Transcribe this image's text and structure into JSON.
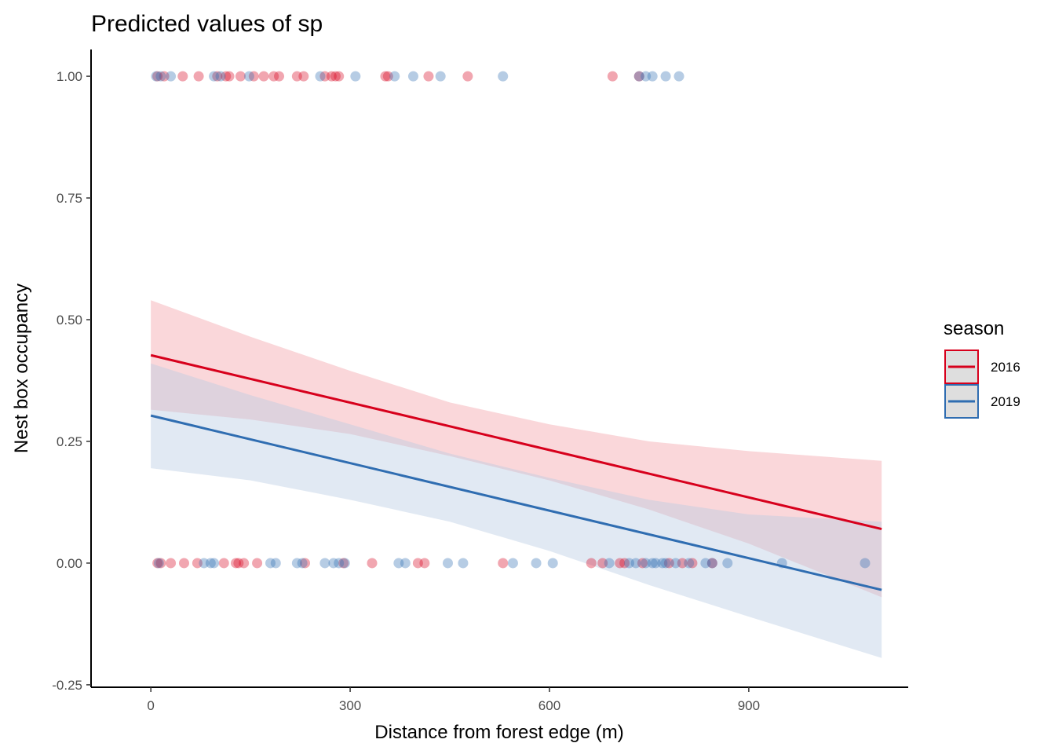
{
  "chart_data": {
    "type": "line",
    "title": "Predicted values of sp",
    "xlabel": "Distance from forest edge (m)",
    "ylabel": "Nest box occupancy",
    "xlim": [
      -90,
      1140
    ],
    "ylim": [
      -0.255,
      1.055
    ],
    "x_ticks": [
      0,
      300,
      600,
      900
    ],
    "x_tick_labels": [
      "0",
      "300",
      "600",
      "900"
    ],
    "y_ticks": [
      -0.25,
      0,
      0.25,
      0.5,
      0.75,
      1
    ],
    "y_tick_labels": [
      "-0.25",
      "0.00",
      "0.25",
      "0.50",
      "0.75",
      "1.00"
    ],
    "grid": false,
    "legend": {
      "title": "season",
      "position": "right"
    },
    "series": [
      {
        "name": "2016",
        "color": "#d7001c",
        "band_color": "#f3a6ad",
        "line": {
          "x": [
            0,
            1100
          ],
          "y": [
            0.427,
            0.07
          ]
        },
        "ci_lower": {
          "x": [
            0,
            150,
            300,
            450,
            600,
            750,
            900,
            1100
          ],
          "y": [
            0.315,
            0.295,
            0.265,
            0.22,
            0.17,
            0.11,
            0.04,
            -0.07
          ]
        },
        "ci_upper": {
          "x": [
            0,
            150,
            300,
            450,
            600,
            750,
            900,
            1100
          ],
          "y": [
            0.54,
            0.465,
            0.395,
            0.33,
            0.285,
            0.25,
            0.23,
            0.21
          ]
        },
        "points_occupied": [
          10,
          20,
          48,
          72,
          100,
          113,
          118,
          135,
          155,
          170,
          185,
          193,
          220,
          230,
          262,
          272,
          278,
          283,
          353,
          357,
          418,
          477,
          695,
          735
        ],
        "points_empty": [
          10,
          15,
          30,
          50,
          70,
          110,
          128,
          132,
          140,
          160,
          232,
          290,
          333,
          402,
          412,
          530,
          663,
          680,
          706,
          713,
          740,
          780,
          800,
          815,
          845
        ]
      },
      {
        "name": "2019",
        "color": "#2f6db1",
        "band_color": "#b7cbe3",
        "line": {
          "x": [
            0,
            1100
          ],
          "y": [
            0.303,
            -0.055
          ]
        },
        "ci_lower": {
          "x": [
            0,
            150,
            300,
            450,
            600,
            750,
            900,
            1100
          ],
          "y": [
            0.195,
            0.17,
            0.13,
            0.085,
            0.025,
            -0.045,
            -0.11,
            -0.195
          ]
        },
        "ci_upper": {
          "x": [
            0,
            150,
            300,
            450,
            600,
            750,
            900,
            1100
          ],
          "y": [
            0.41,
            0.345,
            0.285,
            0.225,
            0.175,
            0.13,
            0.1,
            0.085
          ]
        },
        "points_occupied": [
          8,
          15,
          30,
          95,
          105,
          148,
          255,
          308,
          367,
          395,
          436,
          530,
          735,
          745,
          755,
          775,
          795
        ],
        "points_empty": [
          12,
          80,
          90,
          95,
          180,
          188,
          220,
          228,
          262,
          275,
          283,
          292,
          373,
          383,
          447,
          470,
          545,
          580,
          605,
          690,
          720,
          730,
          745,
          755,
          760,
          770,
          775,
          790,
          810,
          835,
          845,
          868,
          950,
          1075
        ]
      }
    ]
  }
}
